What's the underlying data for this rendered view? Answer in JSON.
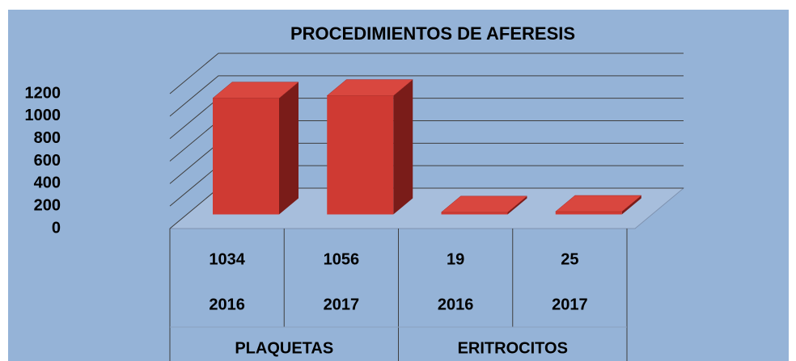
{
  "chart_data": {
    "type": "bar3d",
    "title": "PROCEDIMIENTOS DE AFERESIS",
    "groups": [
      "PLAQUETAS",
      "ERITROCITOS"
    ],
    "categories": [
      "2016",
      "2017",
      "2016",
      "2017"
    ],
    "values": [
      1034,
      1056,
      19,
      25
    ],
    "color": "#cf3a33",
    "ylim": [
      0,
      1200
    ],
    "yticks": [
      0,
      200,
      400,
      600,
      800,
      1000,
      1200
    ],
    "grid": true
  }
}
